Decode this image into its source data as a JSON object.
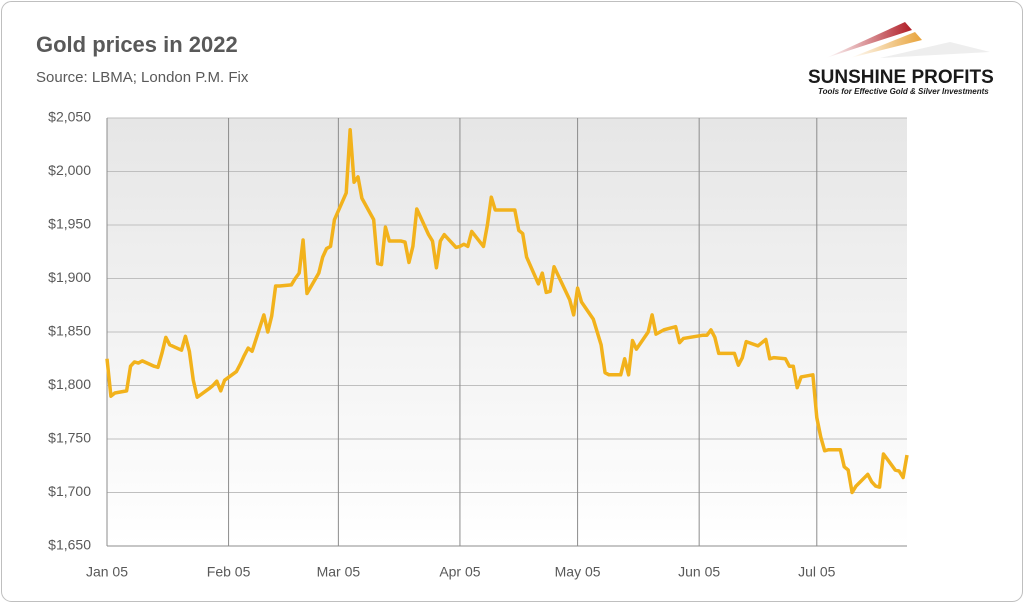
{
  "logo": {
    "name": "SUNSHINE PROFITS",
    "tagline": "Tools for Effective Gold & Silver Investments"
  },
  "chart_data": {
    "type": "line",
    "title": "Gold prices in 2022",
    "subtitle": "Source: LBMA; London P.M. Fix",
    "x": [
      "Jan 05",
      "Jan 06",
      "Jan 07",
      "Jan 10",
      "Jan 11",
      "Jan 12",
      "Jan 13",
      "Jan 14",
      "Jan 17",
      "Jan 18",
      "Jan 19",
      "Jan 20",
      "Jan 21",
      "Jan 24",
      "Jan 25",
      "Jan 26",
      "Jan 27",
      "Jan 28",
      "Jan 31",
      "Feb 01",
      "Feb 02",
      "Feb 03",
      "Feb 04",
      "Feb 07",
      "Feb 08",
      "Feb 09",
      "Feb 10",
      "Feb 11",
      "Feb 14",
      "Feb 15",
      "Feb 16",
      "Feb 17",
      "Feb 18",
      "Feb 21",
      "Feb 22",
      "Feb 23",
      "Feb 24",
      "Feb 25",
      "Feb 28",
      "Mar 01",
      "Mar 02",
      "Mar 03",
      "Mar 04",
      "Mar 07",
      "Mar 08",
      "Mar 09",
      "Mar 10",
      "Mar 11",
      "Mar 14",
      "Mar 15",
      "Mar 16",
      "Mar 17",
      "Mar 18",
      "Mar 21",
      "Mar 22",
      "Mar 23",
      "Mar 24",
      "Mar 25",
      "Mar 28",
      "Mar 29",
      "Mar 30",
      "Mar 31",
      "Apr 01",
      "Apr 04",
      "Apr 05",
      "Apr 06",
      "Apr 07",
      "Apr 08",
      "Apr 11",
      "Apr 12",
      "Apr 13",
      "Apr 14",
      "Apr 19",
      "Apr 20",
      "Apr 21",
      "Apr 22",
      "Apr 25",
      "Apr 26",
      "Apr 27",
      "Apr 28",
      "Apr 29",
      "May 03",
      "May 04",
      "May 05",
      "May 06",
      "May 09",
      "May 10",
      "May 11",
      "May 12",
      "May 13",
      "May 16",
      "May 17",
      "May 18",
      "May 19",
      "May 20",
      "May 23",
      "May 24",
      "May 25",
      "May 26",
      "May 27",
      "May 30",
      "May 31",
      "Jun 01",
      "Jun 06",
      "Jun 07",
      "Jun 08",
      "Jun 09",
      "Jun 10",
      "Jun 13",
      "Jun 14",
      "Jun 15",
      "Jun 16",
      "Jun 17",
      "Jun 20",
      "Jun 21",
      "Jun 22",
      "Jun 23",
      "Jun 24",
      "Jun 27",
      "Jun 28",
      "Jun 29",
      "Jun 30",
      "Jul 01",
      "Jul 04",
      "Jul 05",
      "Jul 06",
      "Jul 07",
      "Jul 08",
      "Jul 11",
      "Jul 12",
      "Jul 13",
      "Jul 14",
      "Jul 15",
      "Jul 18",
      "Jul 19",
      "Jul 20",
      "Jul 21",
      "Jul 22",
      "Jul 25",
      "Jul 26",
      "Jul 27",
      "Jul 28"
    ],
    "series": [
      {
        "color": "#f2b21c",
        "values": [
          1825,
          1790,
          1793,
          1795,
          1818,
          1822,
          1821,
          1823,
          1818,
          1817,
          1830,
          1845,
          1838,
          1833,
          1846,
          1832,
          1805,
          1789,
          1797,
          1800,
          1804,
          1795,
          1805,
          1813,
          1820,
          1828,
          1835,
          1832,
          1866,
          1850,
          1865,
          1893,
          1893,
          1894,
          1900,
          1905,
          1936,
          1886,
          1905,
          1920,
          1928,
          1930,
          1955,
          1980,
          2039,
          1990,
          1995,
          1975,
          1955,
          1914,
          1913,
          1948,
          1935,
          1935,
          1934,
          1915,
          1930,
          1965,
          1941,
          1935,
          1910,
          1935,
          1941,
          1929,
          1930,
          1932,
          1930,
          1944,
          1930,
          1950,
          1976,
          1964,
          1964,
          1945,
          1942,
          1920,
          1895,
          1905,
          1887,
          1888,
          1911,
          1880,
          1866,
          1891,
          1878,
          1862,
          1850,
          1838,
          1812,
          1810,
          1810,
          1825,
          1810,
          1842,
          1834,
          1850,
          1866,
          1848,
          1850,
          1852,
          1855,
          1840,
          1844,
          1847,
          1847,
          1852,
          1845,
          1830,
          1830,
          1830,
          1819,
          1826,
          1841,
          1837,
          1840,
          1843,
          1825,
          1826,
          1825,
          1818,
          1818,
          1798,
          1808,
          1810,
          1770,
          1752,
          1739,
          1740,
          1740,
          1724,
          1721,
          1700,
          1706,
          1717,
          1710,
          1706,
          1705,
          1736,
          1721,
          1720,
          1714,
          1735
        ]
      }
    ],
    "xlim": [
      "Jan 05",
      "Jul 28"
    ],
    "xticks": [
      "Jan 05",
      "Feb 05",
      "Mar 05",
      "Apr 05",
      "May 05",
      "Jun 05",
      "Jul 05"
    ],
    "ylim": [
      1650,
      2050
    ],
    "yticks": [
      {
        "value": 1650,
        "label": "$1,650"
      },
      {
        "value": 1700,
        "label": "$1,700"
      },
      {
        "value": 1750,
        "label": "$1,750"
      },
      {
        "value": 1800,
        "label": "$1,800"
      },
      {
        "value": 1850,
        "label": "$1,850"
      },
      {
        "value": 1900,
        "label": "$1,900"
      },
      {
        "value": 1950,
        "label": "$1,950"
      },
      {
        "value": 2000,
        "label": "$2,000"
      },
      {
        "value": 2050,
        "label": "$2,050"
      }
    ],
    "grid": true
  }
}
